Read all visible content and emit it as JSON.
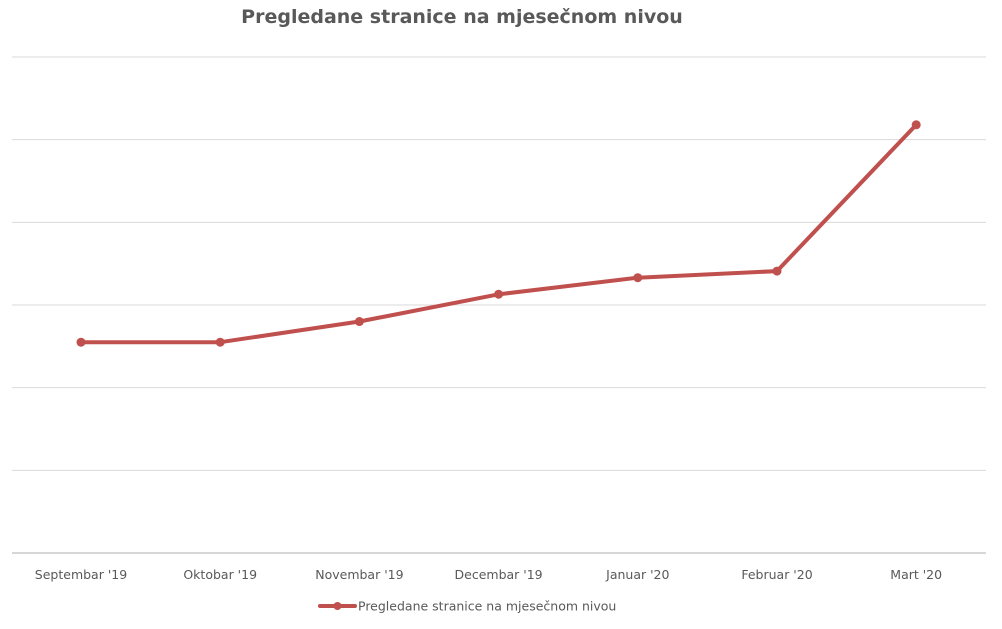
{
  "chart_data": {
    "type": "line",
    "title": "Pregledane stranice na mjesečnom nivou",
    "xlabel": "",
    "ylabel": "",
    "categories": [
      "Septembar '19",
      "Oktobar '19",
      "Novembar '19",
      "Decembar '19",
      "Januar '20",
      "Februar '20",
      "Mart '20"
    ],
    "series": [
      {
        "name": "Pregledane stranice na mjesečnom nivou",
        "values": [
          2.55,
          2.55,
          2.8,
          3.13,
          3.33,
          3.41,
          5.18
        ]
      }
    ],
    "ylim": [
      0,
      6
    ],
    "y_ticks": [
      0,
      1,
      2,
      3,
      4,
      5,
      6
    ],
    "y_tick_labels_visible": false,
    "grid": true,
    "legend": "bottom",
    "colors": {
      "series": "#c0504d",
      "grid": "#d9d9d9",
      "axis": "#bfbfbf",
      "text": "#595959"
    }
  }
}
